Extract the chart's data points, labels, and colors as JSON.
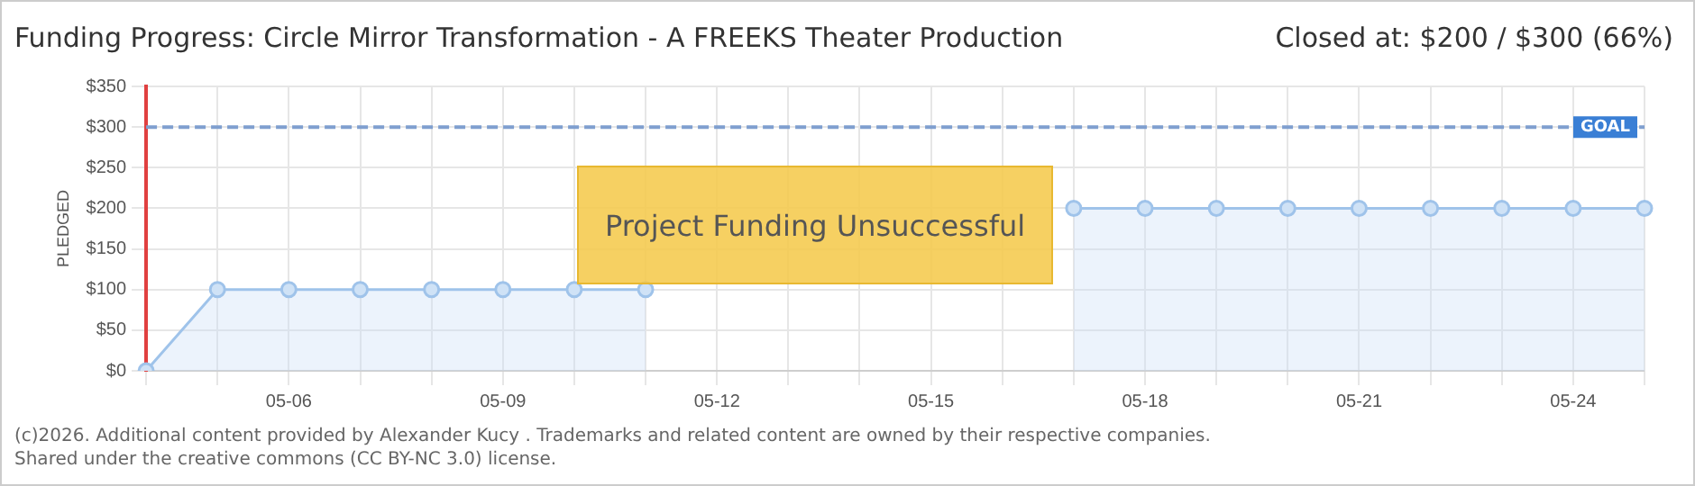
{
  "chart_data": {
    "type": "line",
    "title": "Funding Progress: Circle Mirror Transformation - A FREEKS Theater Production",
    "subtitle": "Closed at: $200 / $300 (66%)",
    "ylabel": "PLEDGED",
    "categories": [
      null,
      null,
      "05-06",
      null,
      null,
      "05-09",
      null,
      null,
      "05-12",
      null,
      null,
      "05-15",
      null,
      null,
      "05-18",
      null,
      null,
      "05-21",
      null,
      null,
      "05-24",
      null
    ],
    "series": [
      {
        "color": "#9fc3ea",
        "values": [
          0,
          100,
          100,
          100,
          100,
          100,
          100,
          100,
          null,
          null,
          null,
          null,
          null,
          200,
          200,
          200,
          200,
          200,
          200,
          200,
          200,
          200
        ]
      }
    ],
    "ylim": [
      0,
      350
    ],
    "yticks": [
      {
        "value": 0,
        "label": "$0"
      },
      {
        "value": 50,
        "label": "$50"
      },
      {
        "value": 100,
        "label": "$100"
      },
      {
        "value": 150,
        "label": "$150"
      },
      {
        "value": 200,
        "label": "$200"
      },
      {
        "value": 250,
        "label": "$250"
      },
      {
        "value": 300,
        "label": "$300"
      },
      {
        "value": 350,
        "label": "$350"
      }
    ],
    "ref_lines": [
      {
        "axis": "y",
        "value": 300,
        "label": "GOAL",
        "color": "#7f9fcf",
        "line_style": "dashed"
      }
    ],
    "annotations": [
      "Project Funding Unsuccessful",
      "(c)2026. Additional content provided by Alexander Kucy . Trademarks and related content are owned by their respective companies.",
      "Shared under the creative commons (CC BY-NC 3.0) license."
    ],
    "grid": true,
    "marker": "circle",
    "line_style": "solid",
    "legend": false
  }
}
